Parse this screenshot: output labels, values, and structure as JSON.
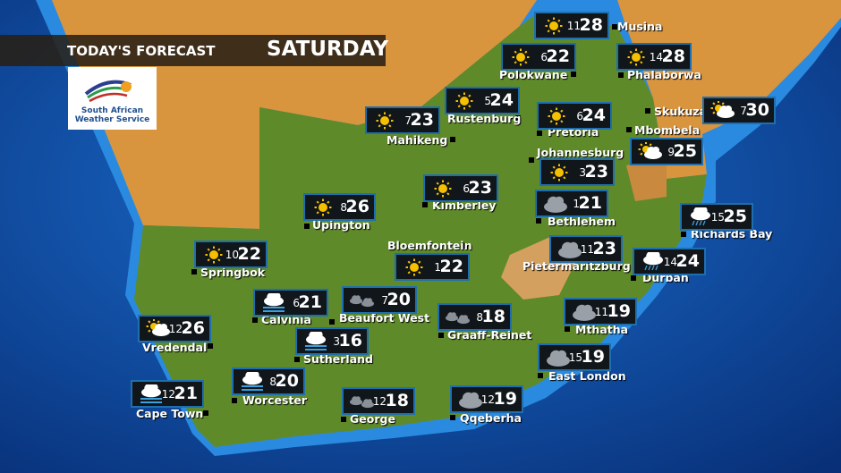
{
  "header": {
    "title": "TODAY'S FORECAST",
    "day": "SATURDAY"
  },
  "logo": {
    "line1": "South African",
    "line2": "Weather Service"
  },
  "colors": {
    "box_border": "#1f6fae",
    "box_bg": "#11161b",
    "ocean": "#0b3f8e",
    "land_sa": "#5f8a2a",
    "land_other": "#d9953e",
    "sun": "#f5c000"
  },
  "stations": [
    {
      "name": "Musina",
      "icon": "sun",
      "min": "11",
      "max": "28"
    },
    {
      "name": "Polokwane",
      "icon": "sun",
      "min": "6",
      "max": "22"
    },
    {
      "name": "Phalaborwa",
      "icon": "sun",
      "min": "14",
      "max": "28"
    },
    {
      "name": "Rustenburg",
      "icon": "sun",
      "min": "5",
      "max": "24"
    },
    {
      "name": "Mahikeng",
      "icon": "sun",
      "min": "7",
      "max": "23"
    },
    {
      "name": "Pretoria",
      "icon": "sun",
      "min": "6",
      "max": "24"
    },
    {
      "name": "Skukuza",
      "icon": "partly-cloudy",
      "min": "7",
      "max": "30"
    },
    {
      "name": "Mbombela",
      "icon": "partly-cloudy",
      "min": "9",
      "max": "25"
    },
    {
      "name": "Johannesburg",
      "icon": "sun",
      "min": "3",
      "max": "23"
    },
    {
      "name": "Kimberley",
      "icon": "sun",
      "min": "6",
      "max": "23"
    },
    {
      "name": "Bethlehem",
      "icon": "cloud",
      "min": "1",
      "max": "21"
    },
    {
      "name": "Upington",
      "icon": "sun",
      "min": "8",
      "max": "26"
    },
    {
      "name": "Richards Bay",
      "icon": "rain",
      "min": "15",
      "max": "25"
    },
    {
      "name": "Bloemfontein",
      "icon": "sun",
      "min": "1",
      "max": "22"
    },
    {
      "name": "Springbok",
      "icon": "sun",
      "min": "10",
      "max": "22"
    },
    {
      "name": "Pietermaritzburg",
      "icon": "cloud",
      "min": "11",
      "max": "23"
    },
    {
      "name": "Durban",
      "icon": "rain",
      "min": "14",
      "max": "24"
    },
    {
      "name": "Calvinia",
      "icon": "fog",
      "min": "6",
      "max": "21"
    },
    {
      "name": "Beaufort West",
      "icon": "scattered-cloud",
      "min": "7",
      "max": "20"
    },
    {
      "name": "Graaff-Reinet",
      "icon": "scattered-cloud",
      "min": "8",
      "max": "18"
    },
    {
      "name": "Mthatha",
      "icon": "cloud",
      "min": "11",
      "max": "19"
    },
    {
      "name": "Vredendal",
      "icon": "partly-cloudy",
      "min": "12",
      "max": "26"
    },
    {
      "name": "Sutherland",
      "icon": "fog",
      "min": "3",
      "max": "16"
    },
    {
      "name": "East London",
      "icon": "cloud",
      "min": "15",
      "max": "19"
    },
    {
      "name": "Worcester",
      "icon": "fog",
      "min": "8",
      "max": "20"
    },
    {
      "name": "Cape Town",
      "icon": "fog",
      "min": "12",
      "max": "21"
    },
    {
      "name": "George",
      "icon": "scattered-cloud",
      "min": "12",
      "max": "18"
    },
    {
      "name": "Qqeberha",
      "icon": "cloud",
      "min": "12",
      "max": "19"
    }
  ]
}
